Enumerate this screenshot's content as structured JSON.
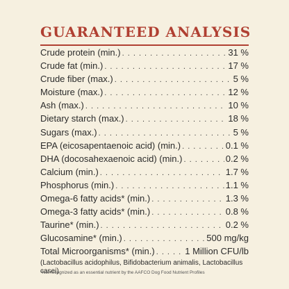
{
  "title": "GUARANTEED ANALYSIS",
  "rows": [
    {
      "label": "Crude protein (min.)",
      "value": "31 %"
    },
    {
      "label": "Crude fat (min.)",
      "value": "17 %"
    },
    {
      "label": "Crude fiber (max.)",
      "value": "5 %"
    },
    {
      "label": "Moisture (max.)",
      "value": "12 %"
    },
    {
      "label": "Ash (max.)",
      "value": "10 %"
    },
    {
      "label": "Dietary starch (max.)",
      "value": "18 %"
    },
    {
      "label": "Sugars (max.)",
      "value": "5 %"
    },
    {
      "label": "EPA (eicosapentaenoic acid) (min.)",
      "value": "0.1 %"
    },
    {
      "label": "DHA (docosahexaenoic acid) (min.)",
      "value": "0.2 %"
    },
    {
      "label": "Calcium (min.)",
      "value": "1.7 %"
    },
    {
      "label": "Phosphorus (min.)",
      "value": "1.1 %"
    },
    {
      "label": "Omega-6 fatty acids* (min.)",
      "value": "1.3 %"
    },
    {
      "label": "Omega-3 fatty acids* (min.)",
      "value": "0.8 %"
    },
    {
      "label": "Taurine* (min.)",
      "value": "0.2 %"
    },
    {
      "label": "Glucosamine* (min.)",
      "value": "500 mg/kg"
    },
    {
      "label": "Total Microorganisms* (min.)",
      "value": "1 Million CFU/lb"
    }
  ],
  "microorganisms_note": "(Lactobacillus acidophilus, Bifidobacterium animalis, Lactobacillus casei)",
  "footnote": "*Not recognized as an essential nutrient by the AAFCO Dog Food Nutrient Profiles"
}
